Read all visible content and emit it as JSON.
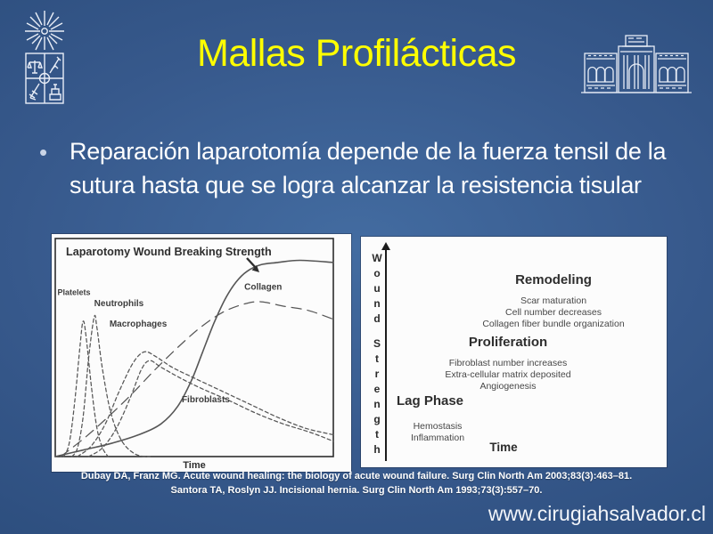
{
  "slide": {
    "title": "Mallas Profilácticas",
    "bullet_marker": "•",
    "bullet_text": "Reparación laparotomía depende de la fuerza tensil de la sutura hasta que se logra alcanzar la resistencia tisular",
    "citations": [
      "Dubay DA, Franz MG. Acute wound healing: the biology of acute wound failure. Surg Clin North Am 2003;83(3):463–81.",
      "Santora TA, Roslyn JJ. Incisional hernia. Surg Clin North Am 1993;73(3):557–70."
    ],
    "website": "www.cirugiahsalvador.cl",
    "logos": {
      "left": "universidad-de-chile-seal",
      "right": "hospital-del-salvador-building"
    }
  },
  "colors": {
    "title_yellow": "#ffff00",
    "body_text": "#ffffff",
    "background_center": "#436ca1",
    "background_edge": "#2a4b7a",
    "panel_background": "#fcfcfc",
    "chart_ink": "#4a4a4a"
  },
  "chart_data": [
    {
      "type": "line",
      "title": "Laparotomy Wound Breaking Strength",
      "xlabel": "Time",
      "ylabel": "",
      "grid": false,
      "legend": "inline-labels",
      "x_range_pct": [
        0,
        100
      ],
      "y_range_pct": [
        0,
        100
      ],
      "series": [
        {
          "name": "Laparotomy Wound Breaking Strength",
          "line_style": "solid",
          "points": [
            [
              0,
              0
            ],
            [
              10,
              3
            ],
            [
              20,
              6
            ],
            [
              30,
              10
            ],
            [
              38,
              15
            ],
            [
              44,
              23
            ],
            [
              49,
              35
            ],
            [
              53,
              48
            ],
            [
              57,
              61
            ],
            [
              61,
              72
            ],
            [
              65,
              80
            ],
            [
              69,
              85
            ],
            [
              74,
              88
            ],
            [
              80,
              89
            ],
            [
              88,
              90
            ],
            [
              100,
              89
            ]
          ]
        },
        {
          "name": "Collagen",
          "line_style": "long-dash",
          "points": [
            [
              2,
              0
            ],
            [
              10,
              8
            ],
            [
              18,
              17
            ],
            [
              27,
              28
            ],
            [
              36,
              40
            ],
            [
              44,
              50
            ],
            [
              52,
              59
            ],
            [
              60,
              66
            ],
            [
              68,
              70
            ],
            [
              74,
              71
            ],
            [
              82,
              69
            ],
            [
              91,
              67
            ],
            [
              100,
              63
            ]
          ]
        },
        {
          "name": "Macrophages",
          "line_style": "dashed",
          "points": [
            [
              8,
              0
            ],
            [
              13,
              5
            ],
            [
              18,
              15
            ],
            [
              23,
              30
            ],
            [
              28,
              43
            ],
            [
              32,
              48
            ],
            [
              36,
              46
            ],
            [
              42,
              41
            ],
            [
              50,
              36
            ],
            [
              60,
              30
            ],
            [
              70,
              24
            ],
            [
              80,
              18
            ],
            [
              90,
              13
            ],
            [
              100,
              10
            ]
          ]
        },
        {
          "name": "Fibroblasts",
          "line_style": "dashed",
          "points": [
            [
              12,
              0
            ],
            [
              17,
              4
            ],
            [
              22,
              13
            ],
            [
              27,
              27
            ],
            [
              31,
              40
            ],
            [
              34,
              44
            ],
            [
              38,
              41
            ],
            [
              45,
              36
            ],
            [
              53,
              31
            ],
            [
              62,
              26
            ],
            [
              72,
              20
            ],
            [
              82,
              15
            ],
            [
              92,
              11
            ],
            [
              100,
              7
            ]
          ]
        },
        {
          "name": "Platelets",
          "line_style": "dashed",
          "points": [
            [
              3,
              0
            ],
            [
              5,
              6
            ],
            [
              7,
              25
            ],
            [
              9,
              52
            ],
            [
              10,
              62
            ],
            [
              11,
              56
            ],
            [
              13,
              32
            ],
            [
              15,
              13
            ],
            [
              17,
              4
            ],
            [
              19,
              0
            ]
          ]
        },
        {
          "name": "Neutrophils",
          "line_style": "dashed",
          "points": [
            [
              6,
              0
            ],
            [
              8,
              4
            ],
            [
              10,
              18
            ],
            [
              12,
              45
            ],
            [
              14,
              64
            ],
            [
              15,
              59
            ],
            [
              17,
              40
            ],
            [
              20,
              20
            ],
            [
              24,
              7
            ],
            [
              29,
              1
            ],
            [
              34,
              0
            ]
          ]
        }
      ]
    },
    {
      "type": "line",
      "title": "",
      "xlabel": "Time",
      "ylabel": "Wound Strength",
      "grid": false,
      "phases": [
        {
          "name": "Lag Phase",
          "items": [
            "Hemostasis",
            "Inflammation"
          ]
        },
        {
          "name": "Proliferation",
          "items": [
            "Fibroblast number increases",
            "Extra-cellular matrix deposited",
            "Angiogenesis"
          ]
        },
        {
          "name": "Remodeling",
          "items": [
            "Scar maturation",
            "Cell number decreases",
            "Collagen fiber bundle organization"
          ]
        }
      ]
    }
  ]
}
